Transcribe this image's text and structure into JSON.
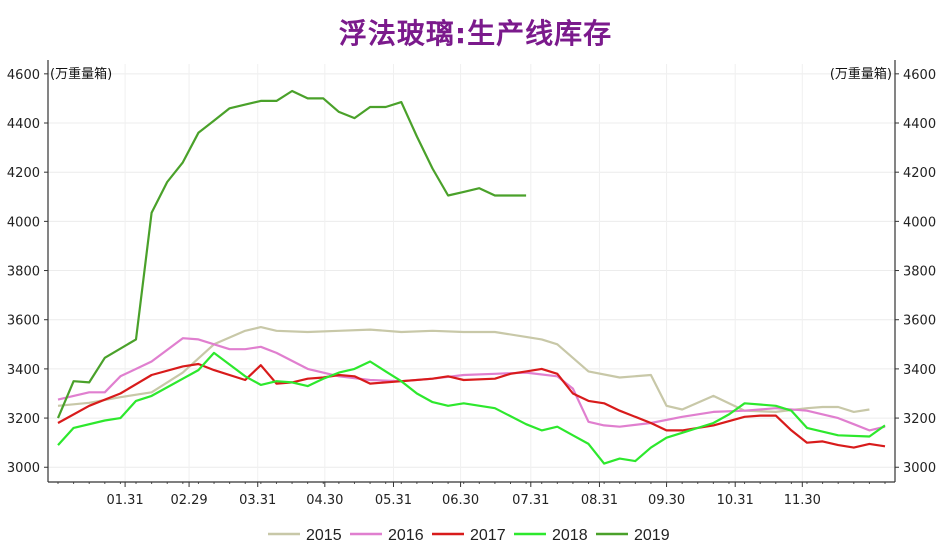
{
  "chart_data": {
    "type": "line",
    "title": "浮法玻璃:生产线库存",
    "unit_left": "(万重量箱)",
    "unit_right": "(万重量箱)",
    "ylim": [
      2940,
      4640
    ],
    "yticks": [
      3000,
      3200,
      3400,
      3600,
      3800,
      4000,
      4200,
      4400,
      4600
    ],
    "x_range_weeks": [
      0,
      53
    ],
    "x_ticks": [
      {
        "label": "01.31",
        "week": 4.3
      },
      {
        "label": "02.29",
        "week": 8.4
      },
      {
        "label": "03.31",
        "week": 12.8
      },
      {
        "label": "04.30",
        "week": 17.1
      },
      {
        "label": "05.31",
        "week": 21.5
      },
      {
        "label": "06.30",
        "week": 25.8
      },
      {
        "label": "07.31",
        "week": 30.3
      },
      {
        "label": "08.31",
        "week": 34.7
      },
      {
        "label": "09.30",
        "week": 39.0
      },
      {
        "label": "10.31",
        "week": 43.4
      },
      {
        "label": "11.30",
        "week": 47.7
      }
    ],
    "grid": true,
    "legend_position": "bottom",
    "series": [
      {
        "name": "2015",
        "color": "#c8c8a8",
        "x": [
          0,
          2,
          4,
          6,
          8,
          10,
          12,
          13,
          14,
          16,
          18,
          20,
          22,
          24,
          26,
          28,
          30,
          31,
          32,
          34,
          36,
          38,
          39,
          40,
          42,
          44,
          46,
          48,
          49,
          50,
          51,
          52
        ],
        "y": [
          3250,
          3262,
          3285,
          3305,
          3385,
          3500,
          3555,
          3570,
          3555,
          3550,
          3555,
          3560,
          3550,
          3555,
          3550,
          3550,
          3530,
          3520,
          3500,
          3390,
          3365,
          3375,
          3250,
          3235,
          3290,
          3230,
          3225,
          3240,
          3245,
          3245,
          3225,
          3235
        ]
      },
      {
        "name": "2016",
        "color": "#e07fcf",
        "x": [
          0,
          2,
          3,
          4,
          6,
          8,
          9,
          11,
          12,
          13,
          14,
          16,
          18,
          20,
          22,
          24,
          26,
          28,
          30,
          32,
          33,
          34,
          35,
          36,
          38,
          40,
          42,
          44,
          46,
          48,
          50,
          51,
          52,
          53
        ],
        "y": [
          3275,
          3305,
          3305,
          3370,
          3430,
          3525,
          3520,
          3480,
          3480,
          3490,
          3465,
          3400,
          3370,
          3355,
          3350,
          3360,
          3375,
          3380,
          3385,
          3370,
          3320,
          3185,
          3170,
          3165,
          3180,
          3205,
          3225,
          3230,
          3240,
          3230,
          3200,
          3175,
          3150,
          3165
        ]
      },
      {
        "name": "2017",
        "color": "#d81b1b",
        "x": [
          0,
          2,
          4,
          6,
          8,
          9,
          10,
          12,
          13,
          14,
          15,
          16,
          17,
          18,
          19,
          20,
          22,
          24,
          25,
          26,
          28,
          29,
          30,
          31,
          32,
          33,
          34,
          35,
          36,
          38,
          39,
          40,
          42,
          44,
          45,
          46,
          47,
          48,
          49,
          50,
          51,
          52,
          53
        ],
        "y": [
          3180,
          3250,
          3300,
          3375,
          3410,
          3420,
          3395,
          3355,
          3415,
          3340,
          3345,
          3360,
          3365,
          3375,
          3370,
          3340,
          3350,
          3360,
          3370,
          3355,
          3360,
          3380,
          3390,
          3400,
          3380,
          3300,
          3270,
          3260,
          3230,
          3180,
          3150,
          3150,
          3170,
          3205,
          3210,
          3210,
          3150,
          3100,
          3105,
          3090,
          3080,
          3095,
          3085
        ]
      },
      {
        "name": "2018",
        "color": "#2de82d",
        "x": [
          0,
          1,
          3,
          4,
          5,
          6,
          8,
          9,
          10,
          12,
          13,
          14,
          15,
          16,
          17,
          18,
          19,
          20,
          21,
          22,
          23,
          24,
          25,
          26,
          28,
          30,
          31,
          32,
          33,
          34,
          35,
          36,
          37,
          38,
          39,
          40,
          42,
          43,
          44,
          46,
          47,
          48,
          50,
          52,
          53
        ],
        "y": [
          3090,
          3160,
          3190,
          3200,
          3270,
          3290,
          3360,
          3395,
          3465,
          3370,
          3335,
          3350,
          3345,
          3330,
          3360,
          3385,
          3400,
          3430,
          3390,
          3350,
          3300,
          3265,
          3250,
          3260,
          3240,
          3175,
          3150,
          3165,
          3130,
          3095,
          3015,
          3035,
          3025,
          3080,
          3120,
          3140,
          3180,
          3215,
          3260,
          3250,
          3230,
          3160,
          3130,
          3125,
          3170
        ]
      },
      {
        "name": "2019",
        "color": "#4aa12a",
        "x": [
          0,
          1,
          2,
          3,
          5,
          6,
          7,
          8,
          9,
          10,
          11,
          12,
          13,
          14,
          15,
          16,
          17,
          18,
          19,
          20,
          21,
          22,
          23,
          24,
          25,
          26,
          27,
          28,
          29,
          30
        ],
        "y": [
          3200,
          3350,
          3345,
          3445,
          3520,
          4035,
          4160,
          4240,
          4360,
          4410,
          4460,
          4475,
          4490,
          4490,
          4530,
          4500,
          4500,
          4445,
          4420,
          4465,
          4465,
          4485,
          4345,
          4215,
          4105,
          4120,
          4135,
          4105,
          4105,
          4105
        ]
      }
    ]
  }
}
